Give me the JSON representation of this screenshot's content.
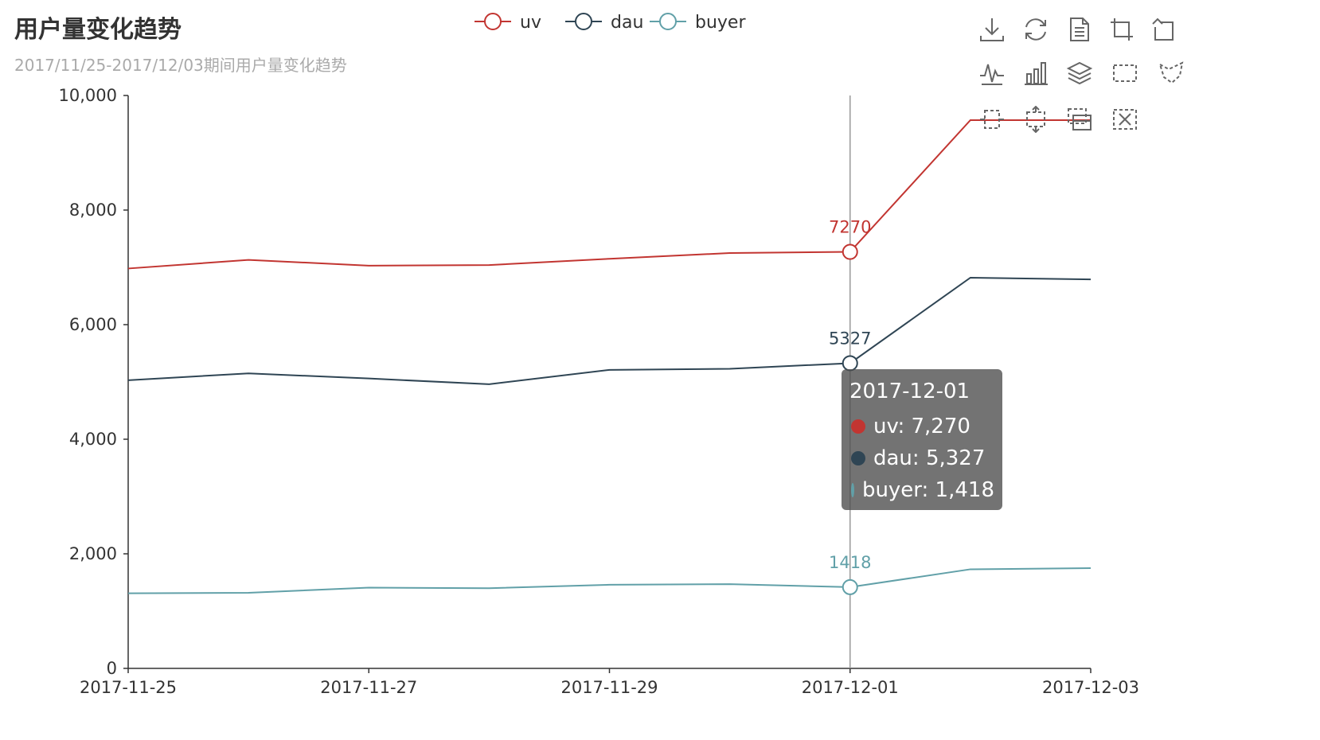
{
  "title": "用户量变化趋势",
  "subtitle": "2017/11/25-2017/12/03期间用户量变化趋势",
  "colors": {
    "uv": "#c23531",
    "dau": "#2f4554",
    "buyer": "#61a0a8",
    "axis": "#333333",
    "pointer": "#999999"
  },
  "chart_data": {
    "type": "line",
    "title": "用户量变化趋势",
    "subtitle": "2017/11/25-2017/12/03期间用户量变化趋势",
    "x": [
      "2017-11-25",
      "2017-11-26",
      "2017-11-27",
      "2017-11-28",
      "2017-11-29",
      "2017-11-30",
      "2017-12-01",
      "2017-12-02",
      "2017-12-03"
    ],
    "x_tick_labels": [
      "2017-11-25",
      "2017-11-27",
      "2017-11-29",
      "2017-12-01",
      "2017-12-03"
    ],
    "ylim": [
      0,
      10000
    ],
    "y_tick_labels": [
      "0",
      "2,000",
      "4,000",
      "6,000",
      "8,000",
      "10,000"
    ],
    "y_ticks": [
      0,
      2000,
      4000,
      6000,
      8000,
      10000
    ],
    "legend_position": "top-center",
    "grid": false,
    "series": [
      {
        "name": "uv",
        "color": "#c23531",
        "values": [
          6980,
          7130,
          7030,
          7040,
          7150,
          7250,
          7270,
          9570,
          9570
        ]
      },
      {
        "name": "dau",
        "color": "#2f4554",
        "values": [
          5030,
          5150,
          5060,
          4960,
          5210,
          5230,
          5327,
          6820,
          6790
        ]
      },
      {
        "name": "buyer",
        "color": "#61a0a8",
        "values": [
          1310,
          1320,
          1410,
          1400,
          1460,
          1470,
          1418,
          1730,
          1750
        ]
      }
    ],
    "highlight_index": 6,
    "point_labels": {
      "uv": "7270",
      "dau": "5327",
      "buyer": "1418"
    }
  },
  "tooltip": {
    "title": "2017-12-01",
    "rows": [
      {
        "label": "uv: 7,270",
        "color": "#c23531"
      },
      {
        "label": "dau: 5,327",
        "color": "#2f4554"
      },
      {
        "label": "buyer: 1,418",
        "color": "#61a0a8"
      }
    ]
  },
  "toolbox": {
    "icons": [
      "download-icon",
      "refresh-icon",
      "data-view-icon",
      "zoom-icon",
      "zoom-reset-icon",
      "line-chart-icon",
      "bar-chart-icon",
      "stack-icon",
      "rect-select-icon",
      "lasso-select-icon",
      "brush-x-icon",
      "brush-y-icon",
      "keep-selection-icon",
      "clear-selection-icon"
    ]
  }
}
